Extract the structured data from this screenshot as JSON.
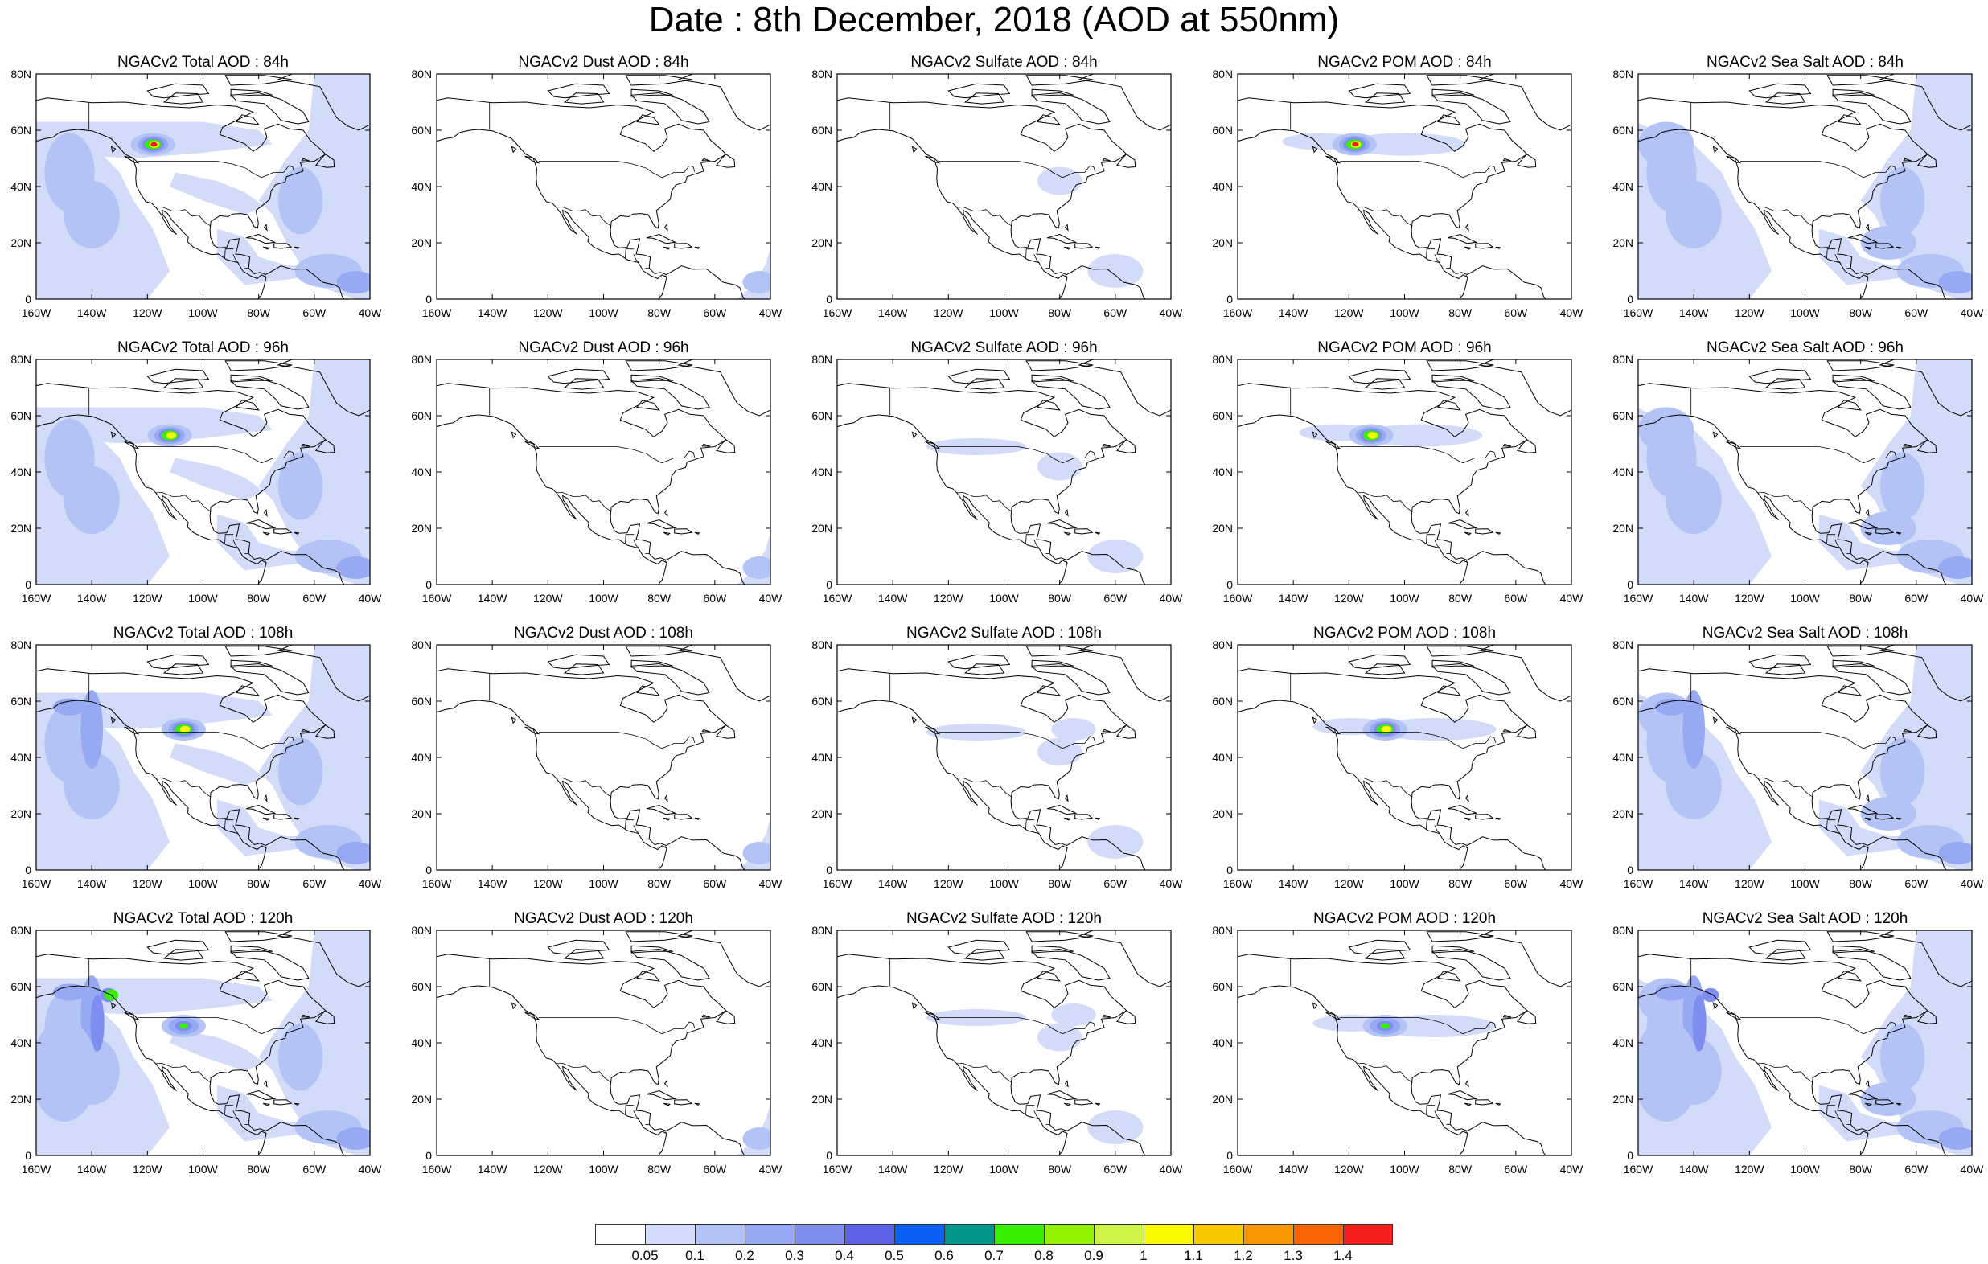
{
  "title": "Date : 8th December, 2018 (AOD at 550nm)",
  "map_ticks": {
    "lon": [
      "160W",
      "140W",
      "120W",
      "100W",
      "80W",
      "60W",
      "40W"
    ],
    "lat": [
      "80N",
      "60N",
      "40N",
      "20N",
      "0"
    ]
  },
  "panels": [
    {
      "title": "NGACv2 Total AOD : 84h",
      "species": "total",
      "lead": 84
    },
    {
      "title": "NGACv2 Dust AOD : 84h",
      "species": "dust",
      "lead": 84
    },
    {
      "title": "NGACv2 Sulfate AOD : 84h",
      "species": "sulfate",
      "lead": 84
    },
    {
      "title": "NGACv2 POM AOD : 84h",
      "species": "pom",
      "lead": 84
    },
    {
      "title": "NGACv2 Sea Salt AOD : 84h",
      "species": "seasalt",
      "lead": 84
    },
    {
      "title": "NGACv2 Total AOD : 96h",
      "species": "total",
      "lead": 96
    },
    {
      "title": "NGACv2 Dust AOD : 96h",
      "species": "dust",
      "lead": 96
    },
    {
      "title": "NGACv2 Sulfate AOD : 96h",
      "species": "sulfate",
      "lead": 96
    },
    {
      "title": "NGACv2 POM AOD : 96h",
      "species": "pom",
      "lead": 96
    },
    {
      "title": "NGACv2 Sea Salt AOD : 96h",
      "species": "seasalt",
      "lead": 96
    },
    {
      "title": "NGACv2 Total AOD : 108h",
      "species": "total",
      "lead": 108
    },
    {
      "title": "NGACv2 Dust AOD : 108h",
      "species": "dust",
      "lead": 108
    },
    {
      "title": "NGACv2 Sulfate AOD : 108h",
      "species": "sulfate",
      "lead": 108
    },
    {
      "title": "NGACv2 POM AOD : 108h",
      "species": "pom",
      "lead": 108
    },
    {
      "title": "NGACv2 Sea Salt AOD : 108h",
      "species": "seasalt",
      "lead": 108
    },
    {
      "title": "NGACv2 Total AOD : 120h",
      "species": "total",
      "lead": 120
    },
    {
      "title": "NGACv2 Dust AOD : 120h",
      "species": "dust",
      "lead": 120
    },
    {
      "title": "NGACv2 Sulfate AOD : 120h",
      "species": "sulfate",
      "lead": 120
    },
    {
      "title": "NGACv2 POM AOD : 120h",
      "species": "pom",
      "lead": 120
    },
    {
      "title": "NGACv2 Sea Salt  AOD : 120h",
      "species": "seasalt",
      "lead": 120
    }
  ],
  "colorbar": {
    "labels": [
      "0.05",
      "0.1",
      "0.2",
      "0.3",
      "0.4",
      "0.5",
      "0.6",
      "0.7",
      "0.8",
      "0.9",
      "1",
      "1.1",
      "1.2",
      "1.3",
      "1.4"
    ],
    "colors": [
      "#ffffff",
      "#d2dcf8",
      "#b4c3f5",
      "#96a9f2",
      "#7f8cf0",
      "#5f62e6",
      "#0a5ff5",
      "#00968c",
      "#36f000",
      "#93f000",
      "#cdf546",
      "#fafa00",
      "#fac800",
      "#fa9600",
      "#fa6400",
      "#f51e1e"
    ]
  }
}
